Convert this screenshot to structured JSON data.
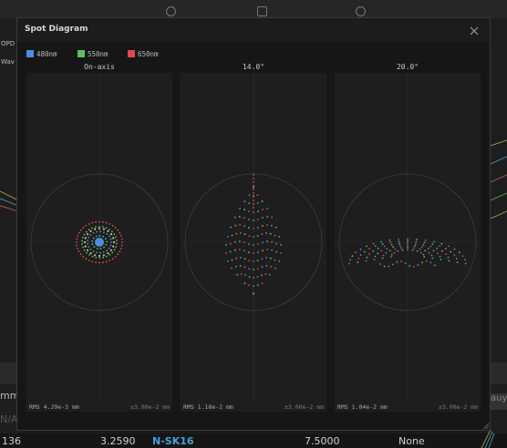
{
  "background_app": {
    "left_labels": [
      "OPD",
      "Wav"
    ],
    "bottom_left_field": "mm]",
    "bottom_left_field2": "N/A",
    "right_field": "auy",
    "row": {
      "cells": [
        "136",
        "3.2590",
        "N-SK16",
        "7.5000",
        "None"
      ]
    },
    "colors": {
      "glass_link": "#4a9fd8"
    }
  },
  "dialog": {
    "title": "Spot Diagram",
    "close_icon": "close-icon",
    "legend": [
      {
        "label": "480nm",
        "color": "#4a8fe0"
      },
      {
        "label": "550nm",
        "color": "#5cc05a"
      },
      {
        "label": "650nm",
        "color": "#e04a4a"
      }
    ],
    "panels": [
      {
        "title": "On-axis",
        "rms": "RMS 4.29e-3 mm",
        "scale": "±3.00e-2 mm"
      },
      {
        "title": "14.0°",
        "rms": "RMS 1.18e-2 mm",
        "scale": "±3.00e-2 mm"
      },
      {
        "title": "20.0°",
        "rms": "RMS 1.04e-2 mm",
        "scale": "±3.00e-2 mm"
      }
    ]
  }
}
